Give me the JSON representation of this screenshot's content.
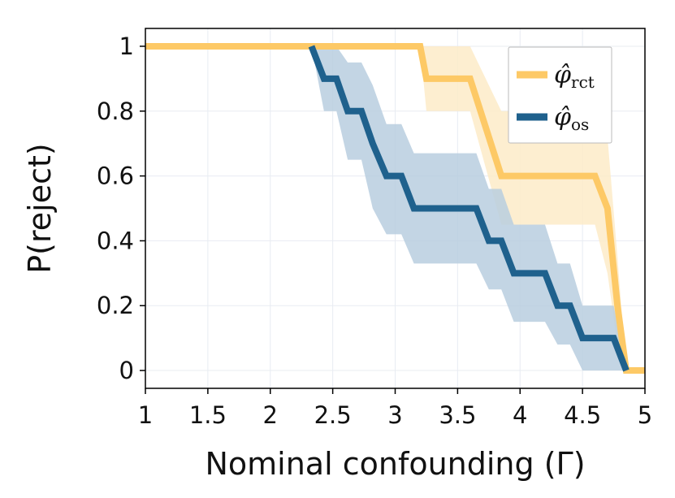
{
  "chart_data": {
    "type": "line",
    "title": "",
    "xlabel": "Nominal confounding (Γ)",
    "ylabel": "P(reject)",
    "xlim": [
      1,
      5
    ],
    "ylim": [
      -0.055,
      1.055
    ],
    "xticks": [
      1,
      1.5,
      2,
      2.5,
      3,
      3.5,
      4,
      4.5,
      5
    ],
    "xtick_labels": [
      "1",
      "1.5",
      "2",
      "2.5",
      "3",
      "3.5",
      "4",
      "4.5",
      "5"
    ],
    "yticks": [
      0,
      0.2,
      0.4,
      0.6,
      0.8,
      1
    ],
    "ytick_labels": [
      "0",
      "0.2",
      "0.4",
      "0.6",
      "0.8",
      "1"
    ],
    "grid": true,
    "legend_position": "top-right",
    "series": [
      {
        "name": "rct",
        "legend_symbol": "φ̂",
        "legend_subscript": "rct",
        "color": "#FDC966",
        "band_color": "#FDEBC8",
        "x": [
          1.0,
          3.2,
          3.25,
          3.6,
          3.85,
          4.6,
          4.7,
          4.78,
          4.85,
          5.0
        ],
        "y": [
          1.0,
          1.0,
          0.9,
          0.9,
          0.6,
          0.6,
          0.5,
          0.2,
          0.0,
          0.0
        ],
        "upper": [
          1.0,
          1.0,
          1.0,
          1.0,
          0.8,
          0.8,
          0.72,
          0.35,
          0.0,
          0.0
        ],
        "lower": [
          1.0,
          1.0,
          0.8,
          0.8,
          0.45,
          0.45,
          0.3,
          0.08,
          0.0,
          0.0
        ]
      },
      {
        "name": "os",
        "legend_symbol": "φ̂",
        "legend_subscript": "os",
        "color": "#1F618D",
        "band_color": "#B9CEDF",
        "x": [
          2.33,
          2.43,
          2.53,
          2.62,
          2.73,
          2.82,
          2.93,
          3.05,
          3.15,
          3.65,
          3.75,
          3.85,
          3.95,
          4.2,
          4.3,
          4.4,
          4.5,
          4.75,
          4.85
        ],
        "y": [
          1.0,
          0.9,
          0.9,
          0.8,
          0.8,
          0.7,
          0.6,
          0.6,
          0.5,
          0.5,
          0.4,
          0.4,
          0.3,
          0.3,
          0.2,
          0.2,
          0.1,
          0.1,
          0.0
        ],
        "upper": [
          1.0,
          1.0,
          1.0,
          0.95,
          0.95,
          0.88,
          0.76,
          0.76,
          0.67,
          0.67,
          0.56,
          0.56,
          0.45,
          0.45,
          0.33,
          0.33,
          0.2,
          0.2,
          0.0
        ],
        "lower": [
          1.0,
          0.8,
          0.8,
          0.65,
          0.65,
          0.5,
          0.42,
          0.42,
          0.33,
          0.33,
          0.25,
          0.25,
          0.15,
          0.15,
          0.08,
          0.08,
          0.0,
          0.0,
          0.0
        ]
      }
    ]
  }
}
